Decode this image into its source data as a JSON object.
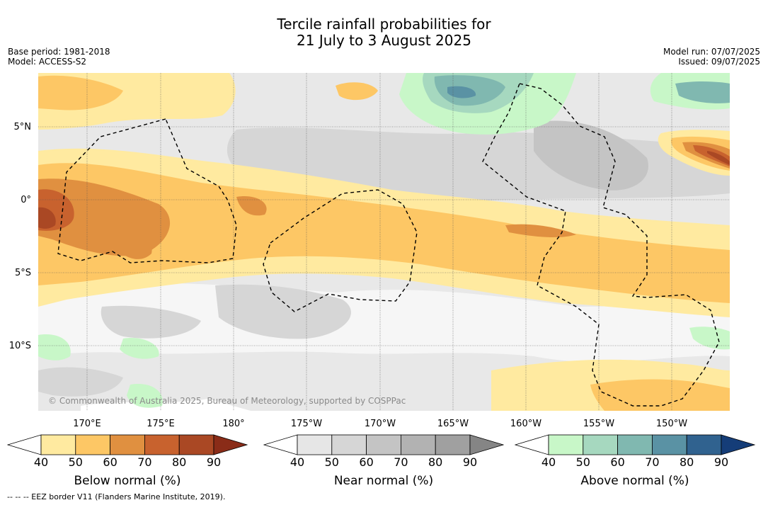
{
  "title": {
    "line1": "Tercile rainfall probabilities for",
    "line2": "21 July to 3 August 2025"
  },
  "meta_left": {
    "base_period": "Base period: 1981-2018",
    "model": "Model: ACCESS-S2"
  },
  "meta_right": {
    "model_run": "Model run: 07/07/2025",
    "issued": "Issued: 09/07/2025"
  },
  "lat_labels": [
    "5°N",
    "0°",
    "5°S",
    "10°S"
  ],
  "lon_labels": [
    "170°E",
    "175°E",
    "180°",
    "175°W",
    "170°W",
    "165°W",
    "160°W",
    "155°W",
    "150°W"
  ],
  "copyright": "© Commonwealth of Australia 2025, Bureau of Meteorology, supported by COSPPac",
  "colorbars": [
    {
      "name": "below",
      "title": "Below normal (%)",
      "ticks": [
        "40",
        "50",
        "60",
        "70",
        "80",
        "90"
      ],
      "colors": [
        "#ffffff",
        "#ffeaa0",
        "#fdc765",
        "#e09040",
        "#c8622e",
        "#aa4824",
        "#8a2c18"
      ]
    },
    {
      "name": "near",
      "title": "Near normal (%)",
      "ticks": [
        "40",
        "50",
        "60",
        "70",
        "80",
        "90"
      ],
      "colors": [
        "#ffffff",
        "#e6e6e6",
        "#d6d6d6",
        "#c4c4c4",
        "#b2b2b2",
        "#a0a0a0",
        "#858585"
      ]
    },
    {
      "name": "above",
      "title": "Above normal (%)",
      "ticks": [
        "40",
        "50",
        "60",
        "70",
        "80",
        "90"
      ],
      "colors": [
        "#ffffff",
        "#c8f7c8",
        "#a6d8bf",
        "#80b8b0",
        "#5a92a4",
        "#30628f",
        "#153d78"
      ]
    }
  ],
  "footnote": "--  --  -- EEZ border V11 (Flanders Marine Institute, 2019)."
}
